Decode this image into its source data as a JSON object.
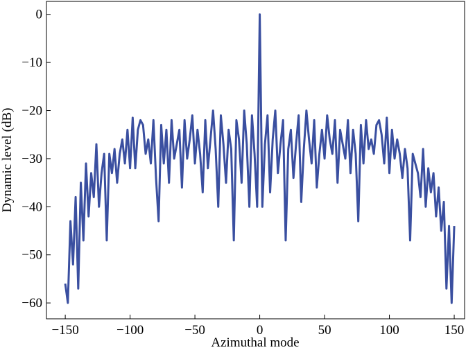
{
  "chart_data": {
    "type": "line",
    "x_label": "Azimuthal mode",
    "y_label": "Dynamic level (dB)",
    "color": "#3a4fa0",
    "xlim": [
      -164.5,
      158
    ],
    "ylim": [
      -63.3,
      2.7
    ],
    "xticks": [
      {
        "value": -150,
        "label": "−150"
      },
      {
        "value": -100,
        "label": "−100"
      },
      {
        "value": -50,
        "label": "−50"
      },
      0,
      50,
      100,
      150
    ],
    "yticks": [
      {
        "value": -60,
        "label": "−60"
      },
      {
        "value": -50,
        "label": "−50"
      },
      {
        "value": -40,
        "label": "−40"
      },
      {
        "value": -30,
        "label": "−30"
      },
      {
        "value": -20,
        "label": "−20"
      },
      {
        "value": -10,
        "label": "−10"
      },
      0
    ],
    "x": [
      -150,
      -148,
      -146,
      -144,
      -142,
      -140,
      -138,
      -136,
      -134,
      -132,
      -130,
      -128,
      -126,
      -124,
      -122,
      -120,
      -118,
      -116,
      -114,
      -112,
      -110,
      -108,
      -106,
      -104,
      -102,
      -100,
      -98,
      -96,
      -94,
      -92,
      -90,
      -88,
      -86,
      -84,
      -82,
      -80,
      -78,
      -76,
      -74,
      -72,
      -70,
      -68,
      -66,
      -64,
      -62,
      -60,
      -58,
      -56,
      -54,
      -52,
      -50,
      -48,
      -46,
      -44,
      -42,
      -40,
      -38,
      -36,
      -34,
      -32,
      -30,
      -28,
      -26,
      -24,
      -22,
      -20,
      -18,
      -16,
      -14,
      -12,
      -10,
      -8,
      -6,
      -4,
      -2,
      0,
      2,
      4,
      6,
      8,
      10,
      12,
      14,
      16,
      18,
      20,
      22,
      24,
      26,
      28,
      30,
      32,
      34,
      36,
      38,
      40,
      42,
      44,
      46,
      48,
      50,
      52,
      54,
      56,
      58,
      60,
      62,
      64,
      66,
      68,
      70,
      72,
      74,
      76,
      78,
      80,
      82,
      84,
      86,
      88,
      90,
      92,
      94,
      96,
      98,
      100,
      102,
      104,
      106,
      108,
      110,
      112,
      114,
      116,
      118,
      120,
      122,
      124,
      126,
      128,
      130,
      132,
      134,
      136,
      138,
      140,
      142,
      144,
      146,
      148,
      150
    ],
    "values": [
      -56,
      -60,
      -43,
      -52,
      -38,
      -57,
      -35,
      -47,
      -31,
      -42,
      -33,
      -38,
      -27,
      -40,
      -33,
      -29,
      -47,
      -29,
      -33,
      -28,
      -35,
      -29,
      -26,
      -31,
      -24,
      -32,
      -21.5,
      -32,
      -24,
      -22,
      -23,
      -29,
      -26,
      -31,
      -22,
      -34,
      -43,
      -23,
      -31,
      -24,
      -35,
      -22,
      -30,
      -27,
      -24,
      -36,
      -22,
      -30,
      -26,
      -21,
      -31,
      -24,
      -29,
      -37,
      -22,
      -32,
      -26,
      -20,
      -28,
      -40,
      -21,
      -27,
      -35,
      -24,
      -28,
      -47,
      -22,
      -26,
      -35,
      -20,
      -27,
      -40,
      -21,
      -29,
      -40,
      0,
      -40,
      -27,
      -21,
      -37,
      -26,
      -20,
      -33,
      -27,
      -22,
      -47,
      -28,
      -24,
      -34,
      -27,
      -21,
      -39,
      -28,
      -20,
      -26,
      -31,
      -22,
      -36,
      -29,
      -24,
      -30,
      -21,
      -26,
      -29,
      -22,
      -35,
      -24,
      -27,
      -30,
      -22,
      -33,
      -24,
      -29,
      -43,
      -23,
      -31,
      -22,
      -28,
      -26,
      -29,
      -23,
      -22,
      -25,
      -31,
      -21.5,
      -33,
      -24,
      -30,
      -26,
      -29,
      -34,
      -28,
      -32,
      -47,
      -29,
      -31,
      -33,
      -38,
      -28,
      -40,
      -32,
      -37,
      -33,
      -42,
      -36,
      -45,
      -39,
      -57,
      -44,
      -60,
      -44
    ]
  }
}
